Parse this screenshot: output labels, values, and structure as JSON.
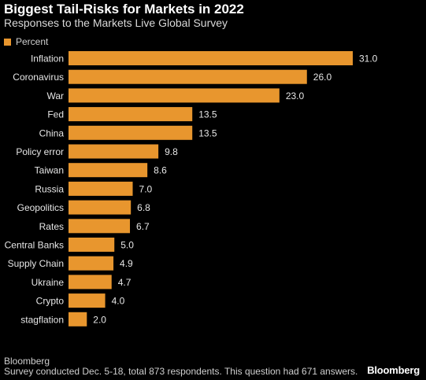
{
  "title": "Biggest Tail-Risks for Markets in 2022",
  "subtitle": "Responses to the Markets Live Global Survey",
  "legend_label": "Percent",
  "source": "Bloomberg",
  "note": "Survey conducted Dec. 5-18, total 873 respondents. This question had 671 answers.",
  "brand": "Bloomberg",
  "colors": {
    "bar": "#e8962e",
    "background": "#000000",
    "text": "#ffffff"
  },
  "chart_data": {
    "type": "bar",
    "orientation": "horizontal",
    "categories": [
      "Inflation",
      "Coronavirus",
      "War",
      "Fed",
      "China",
      "Policy error",
      "Taiwan",
      "Russia",
      "Geopolitics",
      "Rates",
      "Central Banks",
      "Supply Chain",
      "Ukraine",
      "Crypto",
      "stagflation"
    ],
    "values": [
      31.0,
      26.0,
      23.0,
      13.5,
      13.5,
      9.8,
      8.6,
      7.0,
      6.8,
      6.7,
      5.0,
      4.9,
      4.7,
      4.0,
      2.0
    ],
    "value_labels": [
      "31.0",
      "26.0",
      "23.0",
      "13.5",
      "13.5",
      "9.8",
      "8.6",
      "7.0",
      "6.8",
      "6.7",
      "5.0",
      "4.9",
      "4.7",
      "4.0",
      "2.0"
    ],
    "series": [
      {
        "name": "Percent"
      }
    ],
    "xlim": [
      0,
      31
    ],
    "grid": false,
    "legend_position": "top-left"
  }
}
